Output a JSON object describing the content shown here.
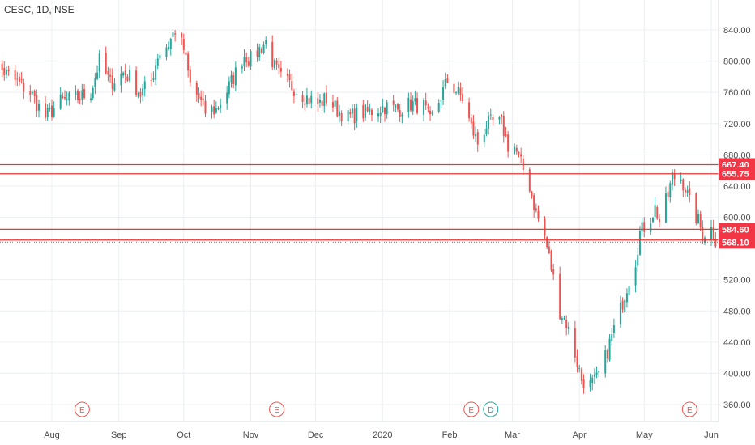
{
  "header": {
    "title": "CESC, 1D, NSE"
  },
  "colors": {
    "up": "#26a69a",
    "down": "#ef5350",
    "level_line": "#e53935",
    "level_label_bg": "#f23645",
    "grid": "#eceff3",
    "axis_text": "#4a4a4a",
    "event_e": "#ef5350",
    "event_d": "#26a69a"
  },
  "chart_data": {
    "type": "candlestick",
    "title": "CESC, 1D, NSE",
    "ylim": [
      340,
      880
    ],
    "grid": true,
    "y_ticks": [
      {
        "value": 360,
        "label": "360.00"
      },
      {
        "value": 400,
        "label": "400.00"
      },
      {
        "value": 440,
        "label": "440.00"
      },
      {
        "value": 480,
        "label": "480.00"
      },
      {
        "value": 520,
        "label": "520.00"
      },
      {
        "value": 600,
        "label": "600.00"
      },
      {
        "value": 640,
        "label": "640.00"
      },
      {
        "value": 680,
        "label": "680.00"
      },
      {
        "value": 720,
        "label": "720.00"
      },
      {
        "value": 760,
        "label": "760.00"
      },
      {
        "value": 800,
        "label": "800.00"
      },
      {
        "value": 840,
        "label": "840.00"
      }
    ],
    "x_ticks": [
      {
        "date": "2019-08-01",
        "label": "Aug"
      },
      {
        "date": "2019-09-01",
        "label": "Sep"
      },
      {
        "date": "2019-10-01",
        "label": "Oct"
      },
      {
        "date": "2019-11-01",
        "label": "Nov"
      },
      {
        "date": "2019-12-01",
        "label": "Dec"
      },
      {
        "date": "2020-01-01",
        "label": "2020"
      },
      {
        "date": "2020-02-01",
        "label": "Feb"
      },
      {
        "date": "2020-03-01",
        "label": "Mar"
      },
      {
        "date": "2020-04-01",
        "label": "Apr"
      },
      {
        "date": "2020-05-01",
        "label": "May"
      },
      {
        "date": "2020-06-01",
        "label": "Jun"
      }
    ],
    "levels": [
      {
        "value": 667.4,
        "label": "667.40",
        "style": "solid"
      },
      {
        "value": 655.75,
        "label": "655.75",
        "style": "solid"
      },
      {
        "value": 584.6,
        "label": "584.60",
        "style": "solid"
      },
      {
        "value": 570.75,
        "label": "570.75",
        "style": "solid"
      },
      {
        "value": 568.1,
        "label": "568.10",
        "style": "dotted"
      }
    ],
    "events": [
      {
        "date": "2019-08-15",
        "label": "E",
        "kind": "earnings"
      },
      {
        "date": "2019-11-13",
        "label": "E",
        "kind": "earnings"
      },
      {
        "date": "2020-02-11",
        "label": "E",
        "kind": "earnings"
      },
      {
        "date": "2020-02-20",
        "label": "D",
        "kind": "dividend"
      },
      {
        "date": "2020-05-22",
        "label": "E",
        "kind": "earnings"
      }
    ],
    "waypoints": [
      [
        "2019-07-02",
        785
      ],
      [
        "2019-07-08",
        790
      ],
      [
        "2019-07-15",
        775
      ],
      [
        "2019-07-22",
        760
      ],
      [
        "2019-07-29",
        728
      ],
      [
        "2019-08-05",
        748
      ],
      [
        "2019-08-12",
        752
      ],
      [
        "2019-08-19",
        760
      ],
      [
        "2019-08-23",
        800
      ],
      [
        "2019-08-28",
        772
      ],
      [
        "2019-09-03",
        785
      ],
      [
        "2019-09-06",
        780
      ],
      [
        "2019-09-11",
        758
      ],
      [
        "2019-09-16",
        775
      ],
      [
        "2019-09-19",
        808
      ],
      [
        "2019-09-24",
        822
      ],
      [
        "2019-09-27",
        840
      ],
      [
        "2019-10-01",
        815
      ],
      [
        "2019-10-04",
        770
      ],
      [
        "2019-10-08",
        752
      ],
      [
        "2019-10-11",
        735
      ],
      [
        "2019-10-16",
        738
      ],
      [
        "2019-10-21",
        762
      ],
      [
        "2019-10-25",
        785
      ],
      [
        "2019-10-29",
        808
      ],
      [
        "2019-11-01",
        802
      ],
      [
        "2019-11-05",
        815
      ],
      [
        "2019-11-08",
        825
      ],
      [
        "2019-11-12",
        792
      ],
      [
        "2019-11-15",
        778
      ],
      [
        "2019-11-20",
        768
      ],
      [
        "2019-11-26",
        755
      ],
      [
        "2019-12-02",
        745
      ],
      [
        "2019-12-06",
        752
      ],
      [
        "2019-12-11",
        738
      ],
      [
        "2019-12-16",
        728
      ],
      [
        "2019-12-20",
        732
      ],
      [
        "2019-12-26",
        735
      ],
      [
        "2020-01-02",
        742
      ],
      [
        "2020-01-08",
        738
      ],
      [
        "2020-01-14",
        745
      ],
      [
        "2020-01-20",
        742
      ],
      [
        "2020-01-23",
        722
      ],
      [
        "2020-01-28",
        755
      ],
      [
        "2020-01-31",
        775
      ],
      [
        "2020-02-04",
        762
      ],
      [
        "2020-02-07",
        752
      ],
      [
        "2020-02-11",
        715
      ],
      [
        "2020-02-14",
        695
      ],
      [
        "2020-02-18",
        718
      ],
      [
        "2020-02-21",
        722
      ],
      [
        "2020-02-25",
        720
      ],
      [
        "2020-02-28",
        692
      ],
      [
        "2020-03-02",
        690
      ],
      [
        "2020-03-05",
        668
      ],
      [
        "2020-03-09",
        640
      ],
      [
        "2020-03-12",
        605
      ],
      [
        "2020-03-16",
        575
      ],
      [
        "2020-03-19",
        535
      ],
      [
        "2020-03-23",
        480
      ],
      [
        "2020-03-26",
        465
      ],
      [
        "2020-03-30",
        425
      ],
      [
        "2020-04-02",
        392
      ],
      [
        "2020-04-06",
        385
      ],
      [
        "2020-04-09",
        392
      ],
      [
        "2020-04-13",
        420
      ],
      [
        "2020-04-16",
        448
      ],
      [
        "2020-04-20",
        482
      ],
      [
        "2020-04-23",
        512
      ],
      [
        "2020-04-27",
        545
      ],
      [
        "2020-04-29",
        580
      ],
      [
        "2020-05-04",
        600
      ],
      [
        "2020-05-06",
        612
      ],
      [
        "2020-05-08",
        595
      ],
      [
        "2020-05-12",
        628
      ],
      [
        "2020-05-14",
        652
      ],
      [
        "2020-05-18",
        650
      ],
      [
        "2020-05-20",
        638
      ],
      [
        "2020-05-22",
        618
      ],
      [
        "2020-05-26",
        595
      ],
      [
        "2020-05-28",
        578
      ],
      [
        "2020-06-01",
        585
      ],
      [
        "2020-06-03",
        572
      ]
    ]
  }
}
